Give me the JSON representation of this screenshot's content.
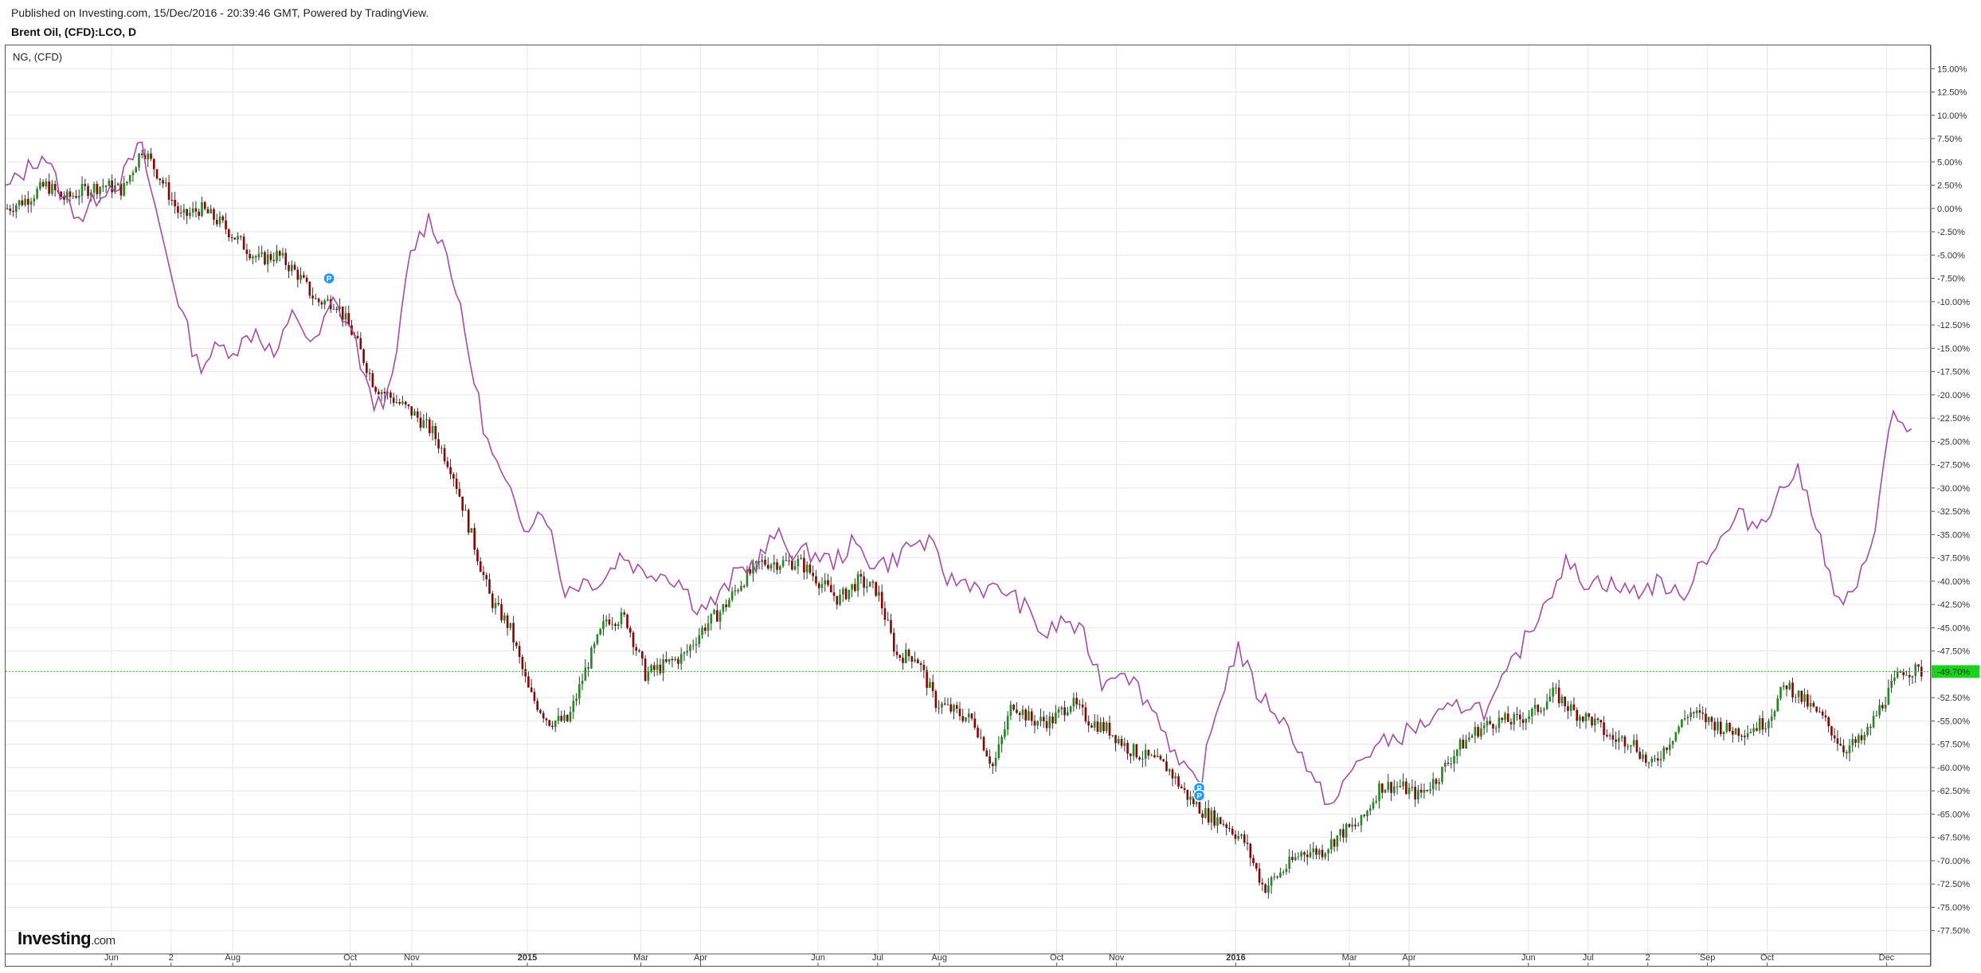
{
  "header": {
    "published": "Published on Investing.com, 15/Dec/2016 - 20:39:46 GMT, Powered by TradingView.",
    "symbol": "Brent Oil, (CFD):LCO, D"
  },
  "legend": {
    "secondary": "NG,  (CFD)"
  },
  "logo": {
    "main": "Investing",
    "suffix": ".com"
  },
  "colors": {
    "candle_up": "#1f8a1f",
    "candle_down": "#8b0000",
    "compare_line": "#a64ca6",
    "last_price_line": "#22c222",
    "last_price_tag": "#1fd11f",
    "grid": "#e6e6e6",
    "marker": "#2196f3"
  },
  "chart_data": {
    "type": "line",
    "title": "Brent Oil, (CFD):LCO, D",
    "y_axis": {
      "unit": "%",
      "range": [
        -80,
        17.5
      ],
      "ticks": [
        "15.00%",
        "12.50%",
        "10.00%",
        "7.50%",
        "5.00%",
        "2.50%",
        "0.00%",
        "-2.50%",
        "-5.00%",
        "-7.50%",
        "-10.00%",
        "-12.50%",
        "-15.00%",
        "-17.50%",
        "-20.00%",
        "-22.50%",
        "-25.00%",
        "-27.50%",
        "-30.00%",
        "-32.50%",
        "-35.00%",
        "-37.50%",
        "-40.00%",
        "-42.50%",
        "-45.00%",
        "-47.50%",
        "-52.50%",
        "-55.00%",
        "-57.50%",
        "-60.00%",
        "-62.50%",
        "-65.00%",
        "-67.50%",
        "-70.00%",
        "-72.50%",
        "-75.00%",
        "-77.50%"
      ],
      "tick_values": [
        15,
        12.5,
        10,
        7.5,
        5,
        2.5,
        0,
        -2.5,
        -5,
        -7.5,
        -10,
        -12.5,
        -15,
        -17.5,
        -20,
        -22.5,
        -25,
        -27.5,
        -30,
        -32.5,
        -35,
        -37.5,
        -40,
        -42.5,
        -45,
        -47.5,
        -52.5,
        -55,
        -57.5,
        -60,
        -62.5,
        -65,
        -67.5,
        -70,
        -72.5,
        -75,
        -77.5
      ],
      "last_value_label": "-49.70%",
      "last_value": -49.7
    },
    "x_axis": {
      "range": [
        0,
        100
      ],
      "ticks": [
        {
          "label": "Jun",
          "pos": 5.5,
          "bold": false
        },
        {
          "label": "2",
          "pos": 8.6,
          "bold": false
        },
        {
          "label": "Aug",
          "pos": 11.8,
          "bold": false
        },
        {
          "label": "Oct",
          "pos": 17.9,
          "bold": false
        },
        {
          "label": "Nov",
          "pos": 21.1,
          "bold": false
        },
        {
          "label": "2015",
          "pos": 27.1,
          "bold": true
        },
        {
          "label": "Mar",
          "pos": 33.0,
          "bold": false
        },
        {
          "label": "Apr",
          "pos": 36.1,
          "bold": false
        },
        {
          "label": "Jun",
          "pos": 42.2,
          "bold": false
        },
        {
          "label": "Jul",
          "pos": 45.3,
          "bold": false
        },
        {
          "label": "Aug",
          "pos": 48.5,
          "bold": false
        },
        {
          "label": "Oct",
          "pos": 54.6,
          "bold": false
        },
        {
          "label": "Nov",
          "pos": 57.7,
          "bold": false
        },
        {
          "label": "2016",
          "pos": 63.9,
          "bold": true
        },
        {
          "label": "Mar",
          "pos": 69.8,
          "bold": false
        },
        {
          "label": "Apr",
          "pos": 72.9,
          "bold": false
        },
        {
          "label": "Jun",
          "pos": 79.1,
          "bold": false
        },
        {
          "label": "Jul",
          "pos": 82.2,
          "bold": false
        },
        {
          "label": "2",
          "pos": 85.3,
          "bold": false
        },
        {
          "label": "Sep",
          "pos": 88.4,
          "bold": false
        },
        {
          "label": "Oct",
          "pos": 91.5,
          "bold": false
        },
        {
          "label": "Dec",
          "pos": 97.7,
          "bold": false
        }
      ]
    },
    "grid": true,
    "series": [
      {
        "name": "Brent Oil, (CFD):LCO, D",
        "style": "candlestick",
        "points": [
          [
            0,
            0
          ],
          [
            1,
            1
          ],
          [
            2,
            2.5
          ],
          [
            3,
            1
          ],
          [
            4,
            2
          ],
          [
            5,
            2.5
          ],
          [
            6,
            2
          ],
          [
            7,
            6.5
          ],
          [
            8,
            3
          ],
          [
            9,
            -1
          ],
          [
            10,
            0
          ],
          [
            11,
            -1.5
          ],
          [
            12,
            -3.5
          ],
          [
            13,
            -5.5
          ],
          [
            14,
            -5
          ],
          [
            15,
            -7
          ],
          [
            16,
            -10
          ],
          [
            17,
            -10
          ],
          [
            18,
            -14
          ],
          [
            19,
            -19
          ],
          [
            20,
            -20.5
          ],
          [
            21,
            -22
          ],
          [
            22,
            -24
          ],
          [
            23,
            -28
          ],
          [
            24,
            -35
          ],
          [
            25,
            -42
          ],
          [
            26,
            -45
          ],
          [
            27,
            -52
          ],
          [
            28,
            -55
          ],
          [
            29,
            -55
          ],
          [
            30,
            -49
          ],
          [
            31,
            -44
          ],
          [
            32,
            -44
          ],
          [
            33,
            -50
          ],
          [
            34,
            -49
          ],
          [
            35,
            -48
          ],
          [
            36,
            -45
          ],
          [
            37,
            -43
          ],
          [
            38,
            -40
          ],
          [
            39,
            -38
          ],
          [
            40,
            -38
          ],
          [
            41,
            -38
          ],
          [
            42,
            -40
          ],
          [
            43,
            -42
          ],
          [
            44,
            -40
          ],
          [
            45,
            -41
          ],
          [
            46,
            -48
          ],
          [
            47,
            -48
          ],
          [
            48,
            -53
          ],
          [
            49,
            -54
          ],
          [
            50,
            -55
          ],
          [
            51,
            -60
          ],
          [
            52,
            -53
          ],
          [
            53,
            -55
          ],
          [
            54,
            -55
          ],
          [
            55,
            -53
          ],
          [
            56,
            -55
          ],
          [
            57,
            -56
          ],
          [
            58,
            -58
          ],
          [
            59,
            -59
          ],
          [
            60,
            -60
          ],
          [
            61,
            -63
          ],
          [
            62,
            -65
          ],
          [
            63,
            -66
          ],
          [
            64,
            -68
          ],
          [
            65,
            -73
          ],
          [
            66,
            -71
          ],
          [
            67,
            -69
          ],
          [
            68,
            -69
          ],
          [
            69,
            -67
          ],
          [
            70,
            -66
          ],
          [
            71,
            -62
          ],
          [
            72,
            -62
          ],
          [
            73,
            -63
          ],
          [
            74,
            -61
          ],
          [
            75,
            -58
          ],
          [
            76,
            -56
          ],
          [
            77,
            -55
          ],
          [
            78,
            -55
          ],
          [
            79,
            -54
          ],
          [
            80,
            -52
          ],
          [
            81,
            -54
          ],
          [
            82,
            -55
          ],
          [
            83,
            -57
          ],
          [
            84,
            -57
          ],
          [
            85,
            -60
          ],
          [
            86,
            -57
          ],
          [
            87,
            -54
          ],
          [
            88,
            -55
          ],
          [
            89,
            -56
          ],
          [
            90,
            -56
          ],
          [
            91,
            -55
          ],
          [
            92,
            -51
          ],
          [
            93,
            -53
          ],
          [
            94,
            -55
          ],
          [
            95,
            -58
          ],
          [
            96,
            -57
          ],
          [
            97,
            -53
          ],
          [
            98,
            -49.5
          ],
          [
            99,
            -49.7
          ]
        ]
      },
      {
        "name": "NG,  (CFD)",
        "style": "line",
        "points": [
          [
            0,
            2
          ],
          [
            1,
            4
          ],
          [
            2,
            6
          ],
          [
            3,
            1
          ],
          [
            4,
            -1
          ],
          [
            5,
            2
          ],
          [
            6,
            3
          ],
          [
            7,
            7
          ],
          [
            8,
            -2
          ],
          [
            9,
            -10
          ],
          [
            10,
            -17
          ],
          [
            11,
            -15
          ],
          [
            12,
            -15
          ],
          [
            13,
            -13
          ],
          [
            14,
            -16
          ],
          [
            15,
            -11
          ],
          [
            16,
            -15
          ],
          [
            17,
            -10
          ],
          [
            18,
            -13
          ],
          [
            19,
            -21
          ],
          [
            20,
            -20
          ],
          [
            21,
            -5
          ],
          [
            22,
            -1
          ],
          [
            23,
            -5
          ],
          [
            24,
            -15
          ],
          [
            25,
            -25
          ],
          [
            26,
            -30
          ],
          [
            27,
            -34
          ],
          [
            28,
            -32
          ],
          [
            29,
            -41
          ],
          [
            30,
            -40
          ],
          [
            31,
            -40
          ],
          [
            32,
            -37
          ],
          [
            33,
            -39
          ],
          [
            34,
            -39
          ],
          [
            35,
            -40
          ],
          [
            36,
            -43
          ],
          [
            37,
            -42
          ],
          [
            38,
            -39
          ],
          [
            39,
            -38
          ],
          [
            40,
            -35
          ],
          [
            41,
            -37
          ],
          [
            42,
            -37
          ],
          [
            43,
            -38
          ],
          [
            44,
            -36
          ],
          [
            45,
            -38
          ],
          [
            46,
            -38
          ],
          [
            47,
            -36
          ],
          [
            48,
            -36
          ],
          [
            49,
            -40
          ],
          [
            50,
            -40
          ],
          [
            51,
            -41
          ],
          [
            52,
            -41
          ],
          [
            53,
            -43
          ],
          [
            54,
            -46
          ],
          [
            55,
            -44
          ],
          [
            56,
            -46
          ],
          [
            57,
            -51
          ],
          [
            58,
            -49
          ],
          [
            59,
            -52
          ],
          [
            60,
            -55
          ],
          [
            61,
            -60
          ],
          [
            62,
            -62
          ],
          [
            63,
            -53
          ],
          [
            64,
            -47
          ],
          [
            65,
            -52
          ],
          [
            66,
            -54
          ],
          [
            67,
            -57
          ],
          [
            68,
            -62
          ],
          [
            69,
            -64
          ],
          [
            70,
            -60
          ],
          [
            71,
            -58
          ],
          [
            72,
            -57
          ],
          [
            73,
            -56
          ],
          [
            74,
            -55
          ],
          [
            75,
            -54
          ],
          [
            76,
            -53
          ],
          [
            77,
            -54
          ],
          [
            78,
            -50
          ],
          [
            79,
            -46
          ],
          [
            80,
            -42
          ],
          [
            81,
            -38
          ],
          [
            82,
            -40
          ],
          [
            83,
            -40
          ],
          [
            84,
            -41
          ],
          [
            85,
            -41
          ],
          [
            86,
            -40
          ],
          [
            87,
            -42
          ],
          [
            88,
            -38
          ],
          [
            89,
            -36
          ],
          [
            90,
            -33
          ],
          [
            91,
            -34
          ],
          [
            92,
            -31
          ],
          [
            93,
            -28
          ],
          [
            94,
            -33
          ],
          [
            95,
            -42
          ],
          [
            96,
            -42
          ],
          [
            97,
            -35
          ],
          [
            98,
            -22
          ],
          [
            99,
            -24
          ]
        ]
      }
    ],
    "markers": [
      {
        "label": "P",
        "x": 16.8,
        "y": -7.5
      },
      {
        "label": "P",
        "x": 62.0,
        "y": -62.2
      },
      {
        "label": "P",
        "x": 62.0,
        "y": -63.0
      }
    ]
  }
}
